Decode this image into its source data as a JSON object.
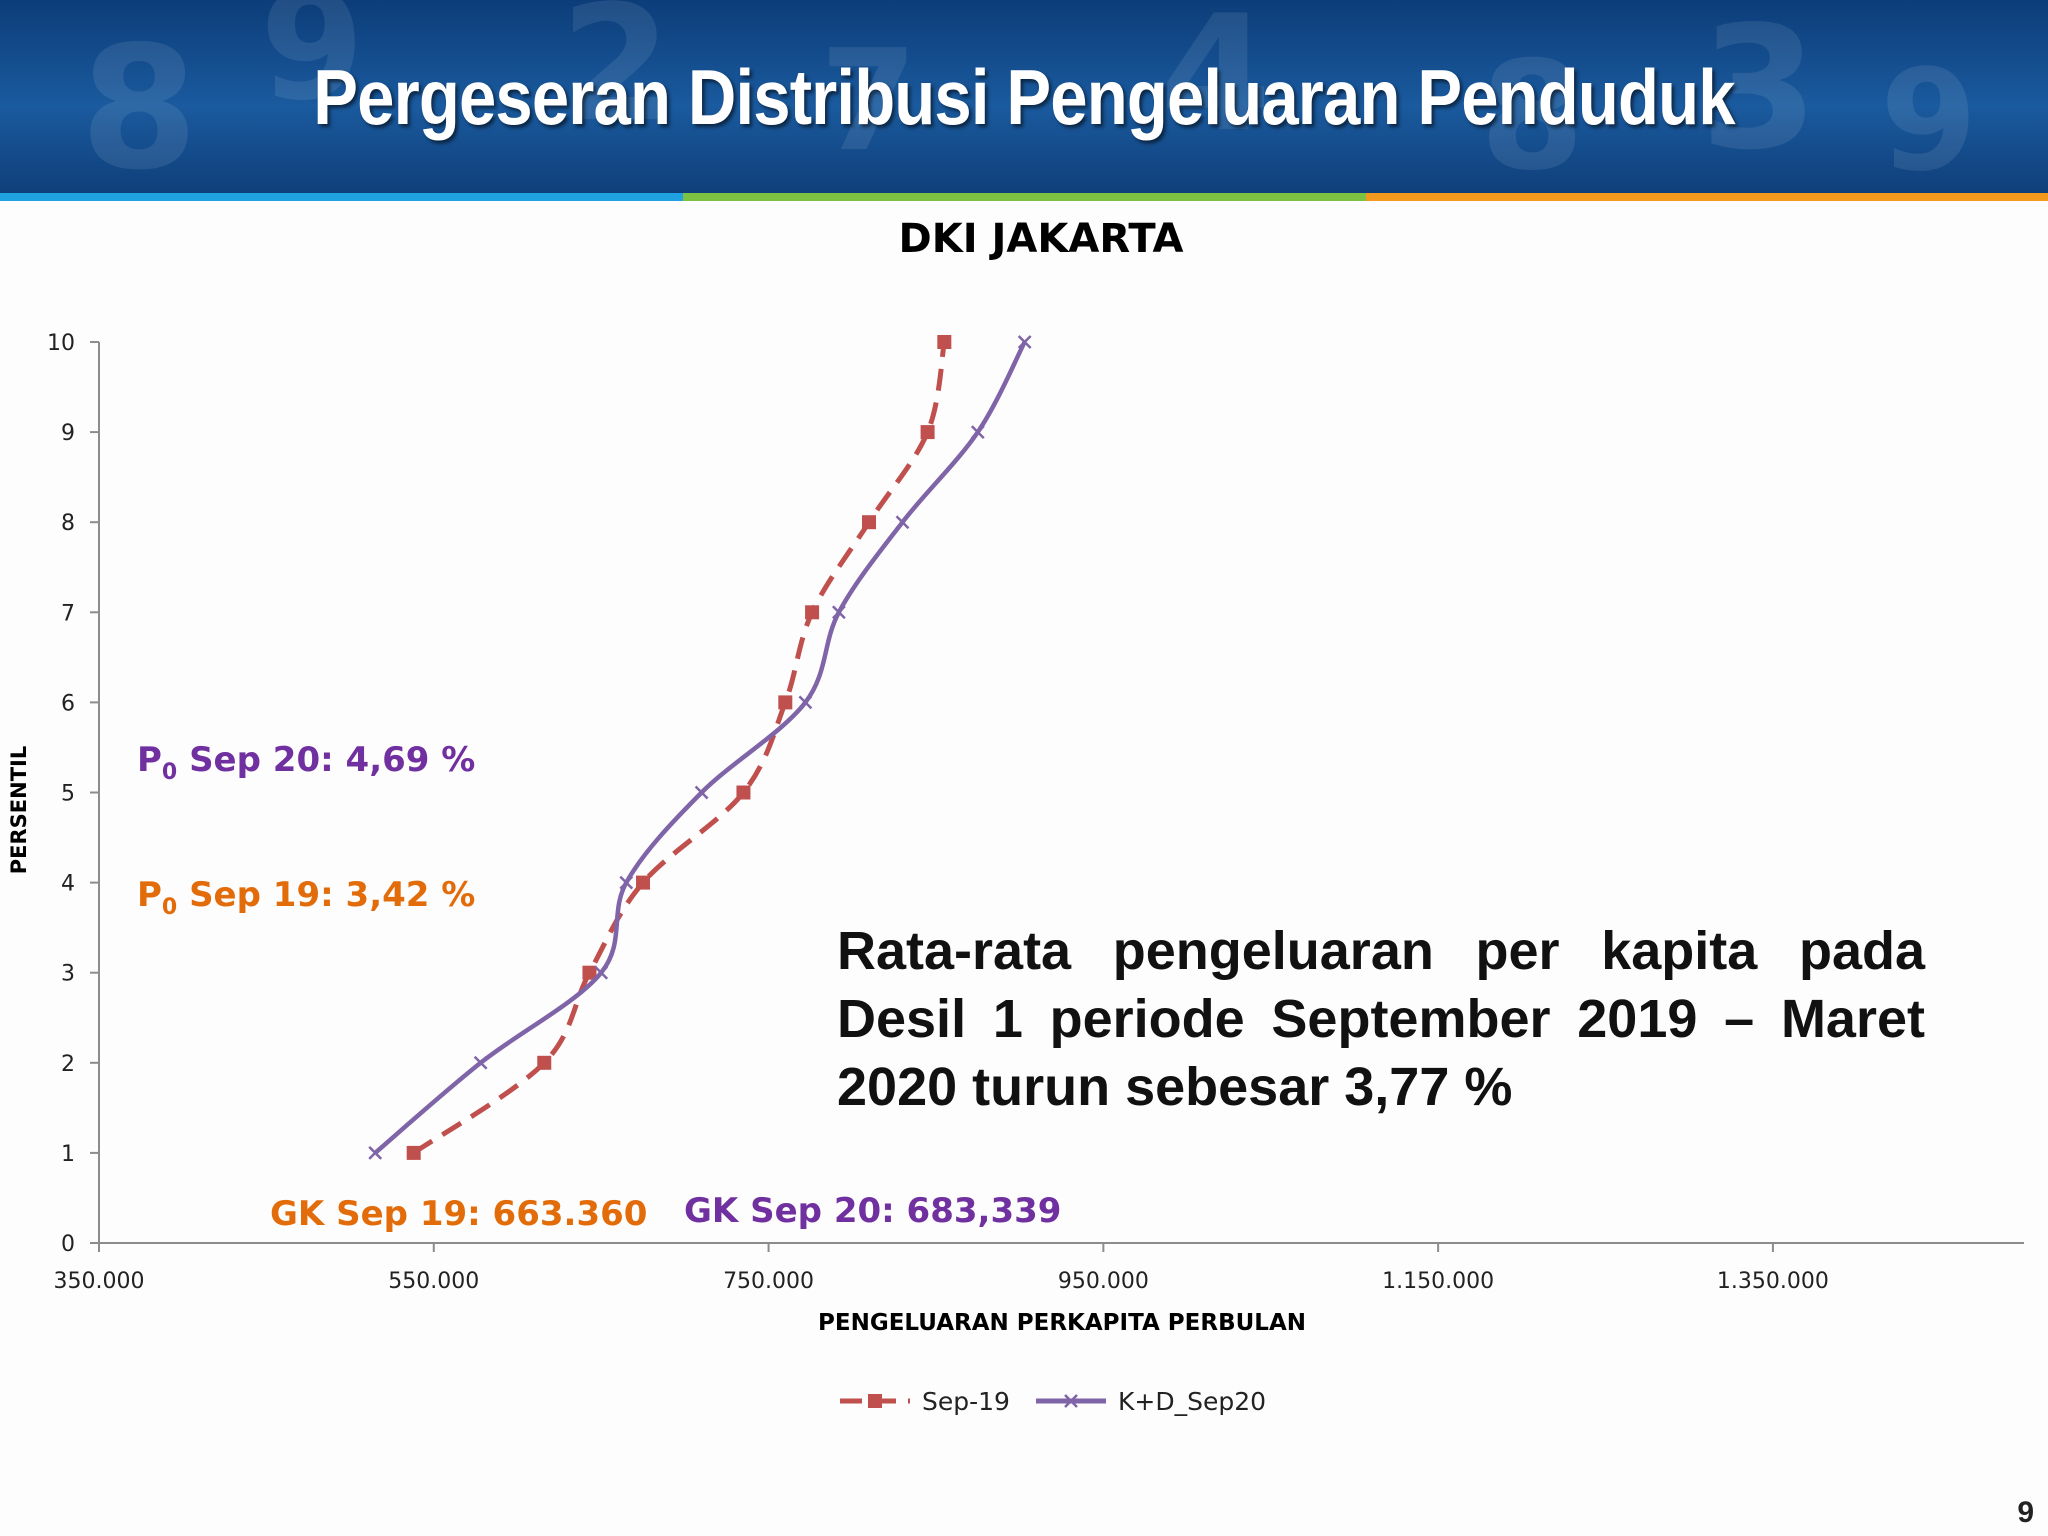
{
  "slide": {
    "title": "Pergeseran Distribusi Pengeluaran Penduduk",
    "page_number": "9"
  },
  "annotations": {
    "p0_sep20_prefix": "P",
    "p0_sep20_sub": "0",
    "p0_sep20_text": " Sep 20: 4,69 %",
    "p0_sep19_prefix": "P",
    "p0_sep19_sub": "0",
    "p0_sep19_text": " Sep 19: 3,42 %",
    "gk_sep19": "GK Sep 19: 663.360",
    "gk_sep20": "GK Sep 20: 683,339",
    "summary": "Rata-rata pengeluaran per kapita pada Desil 1 periode September 2019 – Maret 2020 turun sebesar 3,77 %"
  },
  "colors": {
    "sep19": "#c0504d",
    "sep20": "#7f64a8",
    "p0_sep20": "#7030a0",
    "p0_sep19": "#e36c0a",
    "gk_sep19": "#e36c0a",
    "gk_sep20": "#7030a0"
  },
  "chart_data": {
    "type": "line",
    "title": "DKI JAKARTA",
    "xlabel": "PENGELUARAN PERKAPITA PERBULAN",
    "ylabel": "PERSENTIL",
    "xlim": [
      350000,
      1500000
    ],
    "ylim": [
      0,
      10
    ],
    "x_ticks": [
      350000,
      550000,
      750000,
      950000,
      1150000,
      1350000
    ],
    "x_tick_labels": [
      "350.000",
      "550.000",
      "750.000",
      "950.000",
      "1.150.000",
      "1.350.000"
    ],
    "y_ticks": [
      0,
      1,
      2,
      3,
      4,
      5,
      6,
      7,
      8,
      9,
      10
    ],
    "y_tick_labels": [
      "0",
      "1",
      "2",
      "3",
      "4",
      "5",
      "6",
      "7",
      "8",
      "9",
      "10"
    ],
    "legend_position": "bottom",
    "series": [
      {
        "name": "Sep-19",
        "style": "dashed",
        "marker": "square",
        "points": [
          {
            "x": 538000,
            "y": 1
          },
          {
            "x": 616000,
            "y": 2
          },
          {
            "x": 643000,
            "y": 3
          },
          {
            "x": 675000,
            "y": 4
          },
          {
            "x": 735000,
            "y": 5
          },
          {
            "x": 760000,
            "y": 6
          },
          {
            "x": 776000,
            "y": 7
          },
          {
            "x": 810000,
            "y": 8
          },
          {
            "x": 845000,
            "y": 9
          },
          {
            "x": 855000,
            "y": 10
          }
        ]
      },
      {
        "name": "K+D_Sep20",
        "style": "solid",
        "marker": "x",
        "points": [
          {
            "x": 515000,
            "y": 1
          },
          {
            "x": 578000,
            "y": 2
          },
          {
            "x": 650000,
            "y": 3
          },
          {
            "x": 665000,
            "y": 4
          },
          {
            "x": 710000,
            "y": 5
          },
          {
            "x": 772000,
            "y": 6
          },
          {
            "x": 792000,
            "y": 7
          },
          {
            "x": 830000,
            "y": 8
          },
          {
            "x": 875000,
            "y": 9
          },
          {
            "x": 903000,
            "y": 10
          }
        ]
      }
    ]
  }
}
